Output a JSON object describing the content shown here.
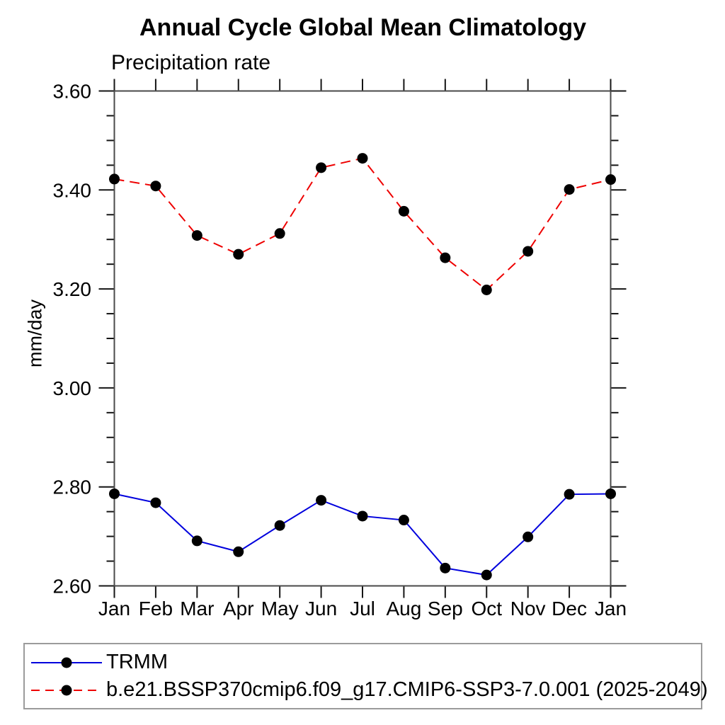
{
  "chart_data": {
    "type": "line",
    "title": "Annual Cycle Global Mean Climatology",
    "subtitle": "Precipitation rate",
    "ylabel": "mm/day",
    "xlabel": "",
    "categories": [
      "Jan",
      "Feb",
      "Mar",
      "Apr",
      "May",
      "Jun",
      "Jul",
      "Aug",
      "Sep",
      "Oct",
      "Nov",
      "Dec",
      "Jan"
    ],
    "ylim": [
      2.6,
      3.6
    ],
    "ytick_labels": [
      "2.60",
      "2.80",
      "3.00",
      "3.20",
      "3.40",
      "3.60"
    ],
    "ytick_major_step": 0.2,
    "ytick_minor_step": 0.05,
    "grid": false,
    "legend_position": "bottom-left",
    "axis_color": "#4a4a4a",
    "tick_color": "#151515",
    "text_color": "#000000",
    "series": [
      {
        "name": "TRMM",
        "color": "#0000dd",
        "line_style": "solid",
        "marker": "circle",
        "marker_color": "#000000",
        "values": [
          2.786,
          2.768,
          2.691,
          2.669,
          2.722,
          2.773,
          2.741,
          2.733,
          2.636,
          2.622,
          2.699,
          2.785,
          2.786
        ]
      },
      {
        "name": "b.e21.BSSP370cmip6.f09_g17.CMIP6-SSP3-7.0.001 (2025-2049)",
        "color": "#ee0000",
        "line_style": "dashed",
        "marker": "circle",
        "marker_color": "#000000",
        "values": [
          3.422,
          3.408,
          3.308,
          3.27,
          3.312,
          3.445,
          3.464,
          3.357,
          3.263,
          3.198,
          3.276,
          3.401,
          3.421
        ]
      }
    ]
  }
}
